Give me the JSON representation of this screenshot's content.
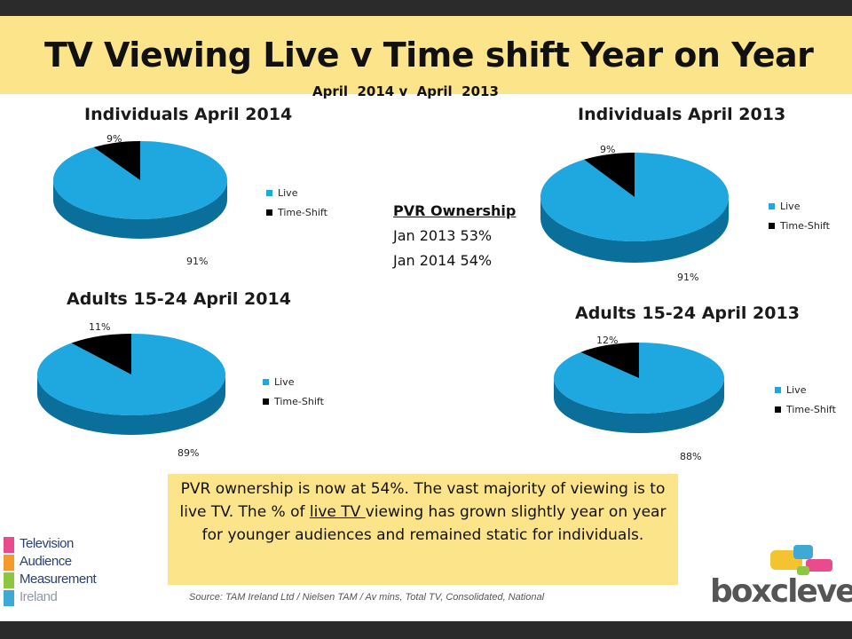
{
  "header": {
    "title": "TV Viewing  Live v Time shift Year on Year",
    "subtitle": "April  2014 v  April  2013"
  },
  "colors": {
    "live": "#1fa8e0",
    "live_side": "#0b6f9c",
    "timeshift": "#000000",
    "band": "#fce48a"
  },
  "chart_data": [
    {
      "type": "pie",
      "title": "Individuals April 2014",
      "categories": [
        "Live",
        "Time-Shift"
      ],
      "values": [
        91,
        9
      ],
      "labels": [
        "91%",
        "9%"
      ],
      "legend": [
        "Live",
        "Time-Shift"
      ],
      "legend_position": "right"
    },
    {
      "type": "pie",
      "title": "Individuals April 2013",
      "categories": [
        "Live",
        "Time-Shift"
      ],
      "values": [
        91,
        9
      ],
      "labels": [
        "91%",
        "9%"
      ],
      "legend": [
        "Live",
        "Time-Shift"
      ],
      "legend_position": "right"
    },
    {
      "type": "pie",
      "title": "Adults 15-24 April 2014",
      "categories": [
        "Live",
        "Time-Shift"
      ],
      "values": [
        89,
        11
      ],
      "labels": [
        "89%",
        "11%"
      ],
      "legend": [
        "Live",
        "Time-Shift"
      ],
      "legend_position": "right"
    },
    {
      "type": "pie",
      "title": "Adults 15-24 April 2013",
      "categories": [
        "Live",
        "Time-Shift"
      ],
      "values": [
        88,
        12
      ],
      "labels": [
        "88%",
        "12%"
      ],
      "legend": [
        "Live",
        "Time-Shift"
      ],
      "legend_position": "right"
    }
  ],
  "pvr": {
    "heading": "PVR Ownership",
    "lines": [
      "Jan 2013 53%",
      "Jan 2014 54%"
    ]
  },
  "summary": {
    "part1": "PVR ownership is now at 54%. The vast majority of viewing is to live TV. The % of ",
    "highlight": "live TV ",
    "part2": "viewing has grown slightly year on year for younger audiences and remained static for individuals."
  },
  "source": "Source: TAM Ireland Ltd / Nielsen TAM / Av mins, Total TV, Consolidated, National",
  "logos": {
    "tam": [
      "Television",
      "Audience",
      "Measurement",
      "Ireland"
    ],
    "boxclever": "boxclever"
  }
}
